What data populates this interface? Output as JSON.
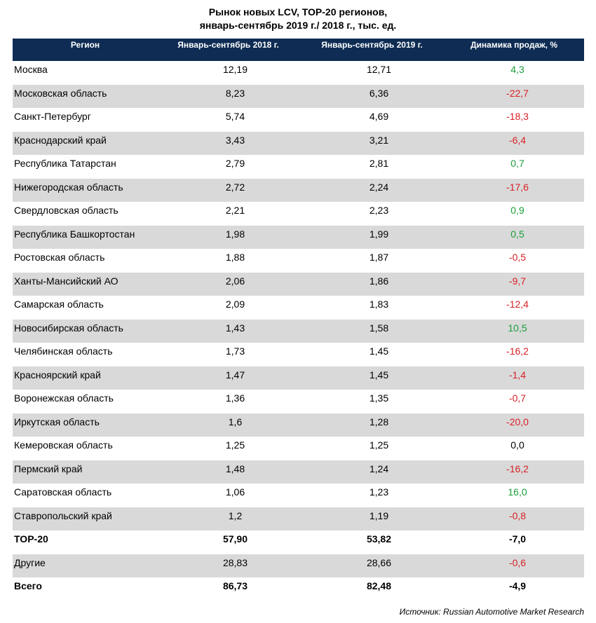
{
  "chart_data": {
    "type": "table",
    "title": {
      "line1": "Рынок новых LCV, TOP-20 регионов,",
      "line2": "январь-сентябрь 2019 г./ 2018 г., тыс. ед."
    },
    "columns": [
      "Регион",
      "Январь-сентябрь 2018 г.",
      "Январь-сентябрь 2019 г.",
      "Динамика продаж, %"
    ],
    "rows": [
      {
        "region": "Москва",
        "y2018": "12,19",
        "y2019": "12,71",
        "dynamics": "4,3",
        "color": "#1a9e3a",
        "bold": false
      },
      {
        "region": "Московская область",
        "y2018": "8,23",
        "y2019": "6,36",
        "dynamics": "-22,7",
        "color": "#d81f26",
        "bold": false
      },
      {
        "region": "Санкт-Петербург",
        "y2018": "5,74",
        "y2019": "4,69",
        "dynamics": "-18,3",
        "color": "#d81f26",
        "bold": false
      },
      {
        "region": "Краснодарский край",
        "y2018": "3,43",
        "y2019": "3,21",
        "dynamics": "-6,4",
        "color": "#d81f26",
        "bold": false
      },
      {
        "region": "Республика Татарстан",
        "y2018": "2,79",
        "y2019": "2,81",
        "dynamics": "0,7",
        "color": "#1a9e3a",
        "bold": false
      },
      {
        "region": "Нижегородская область",
        "y2018": "2,72",
        "y2019": "2,24",
        "dynamics": "-17,6",
        "color": "#d81f26",
        "bold": false
      },
      {
        "region": "Свердловская область",
        "y2018": "2,21",
        "y2019": "2,23",
        "dynamics": "0,9",
        "color": "#1a9e3a",
        "bold": false
      },
      {
        "region": "Республика Башкортостан",
        "y2018": "1,98",
        "y2019": "1,99",
        "dynamics": "0,5",
        "color": "#1a9e3a",
        "bold": false
      },
      {
        "region": "Ростовская область",
        "y2018": "1,88",
        "y2019": "1,87",
        "dynamics": "-0,5",
        "color": "#d81f26",
        "bold": false
      },
      {
        "region": "Ханты-Мансийский АО",
        "y2018": "2,06",
        "y2019": "1,86",
        "dynamics": "-9,7",
        "color": "#d81f26",
        "bold": false
      },
      {
        "region": "Самарская область",
        "y2018": "2,09",
        "y2019": "1,83",
        "dynamics": "-12,4",
        "color": "#d81f26",
        "bold": false
      },
      {
        "region": "Новосибирская область",
        "y2018": "1,43",
        "y2019": "1,58",
        "dynamics": "10,5",
        "color": "#1a9e3a",
        "bold": false
      },
      {
        "region": "Челябинская область",
        "y2018": "1,73",
        "y2019": "1,45",
        "dynamics": "-16,2",
        "color": "#d81f26",
        "bold": false
      },
      {
        "region": "Красноярский край",
        "y2018": "1,47",
        "y2019": "1,45",
        "dynamics": "-1,4",
        "color": "#d81f26",
        "bold": false
      },
      {
        "region": "Воронежская область",
        "y2018": "1,36",
        "y2019": "1,35",
        "dynamics": "-0,7",
        "color": "#d81f26",
        "bold": false
      },
      {
        "region": "Иркутская область",
        "y2018": "1,6",
        "y2019": "1,28",
        "dynamics": "-20,0",
        "color": "#d81f26",
        "bold": false
      },
      {
        "region": "Кемеровская область",
        "y2018": "1,25",
        "y2019": "1,25",
        "dynamics": "0,0",
        "color": "#000000",
        "bold": false
      },
      {
        "region": "Пермский край",
        "y2018": "1,48",
        "y2019": "1,24",
        "dynamics": "-16,2",
        "color": "#d81f26",
        "bold": false
      },
      {
        "region": "Саратовская область",
        "y2018": "1,06",
        "y2019": "1,23",
        "dynamics": "16,0",
        "color": "#1a9e3a",
        "bold": false
      },
      {
        "region": "Ставропольский край",
        "y2018": "1,2",
        "y2019": "1,19",
        "dynamics": "-0,8",
        "color": "#d81f26",
        "bold": false
      },
      {
        "region": "TOP-20",
        "y2018": "57,90",
        "y2019": "53,82",
        "dynamics": "-7,0",
        "color": "#000000",
        "bold": true
      },
      {
        "region": "Другие",
        "y2018": "28,83",
        "y2019": "28,66",
        "dynamics": "-0,6",
        "color": "#d81f26",
        "bold": false
      },
      {
        "region": "Всего",
        "y2018": "86,73",
        "y2019": "82,48",
        "dynamics": "-4,9",
        "color": "#000000",
        "bold": true
      }
    ],
    "source": "Источник: Russian Automotive Market Research"
  },
  "colors": {
    "header_bg": "#0e2c54",
    "alt_row_bg": "#d9d9d9",
    "positive": "#1a9e3a",
    "negative": "#d81f26"
  }
}
